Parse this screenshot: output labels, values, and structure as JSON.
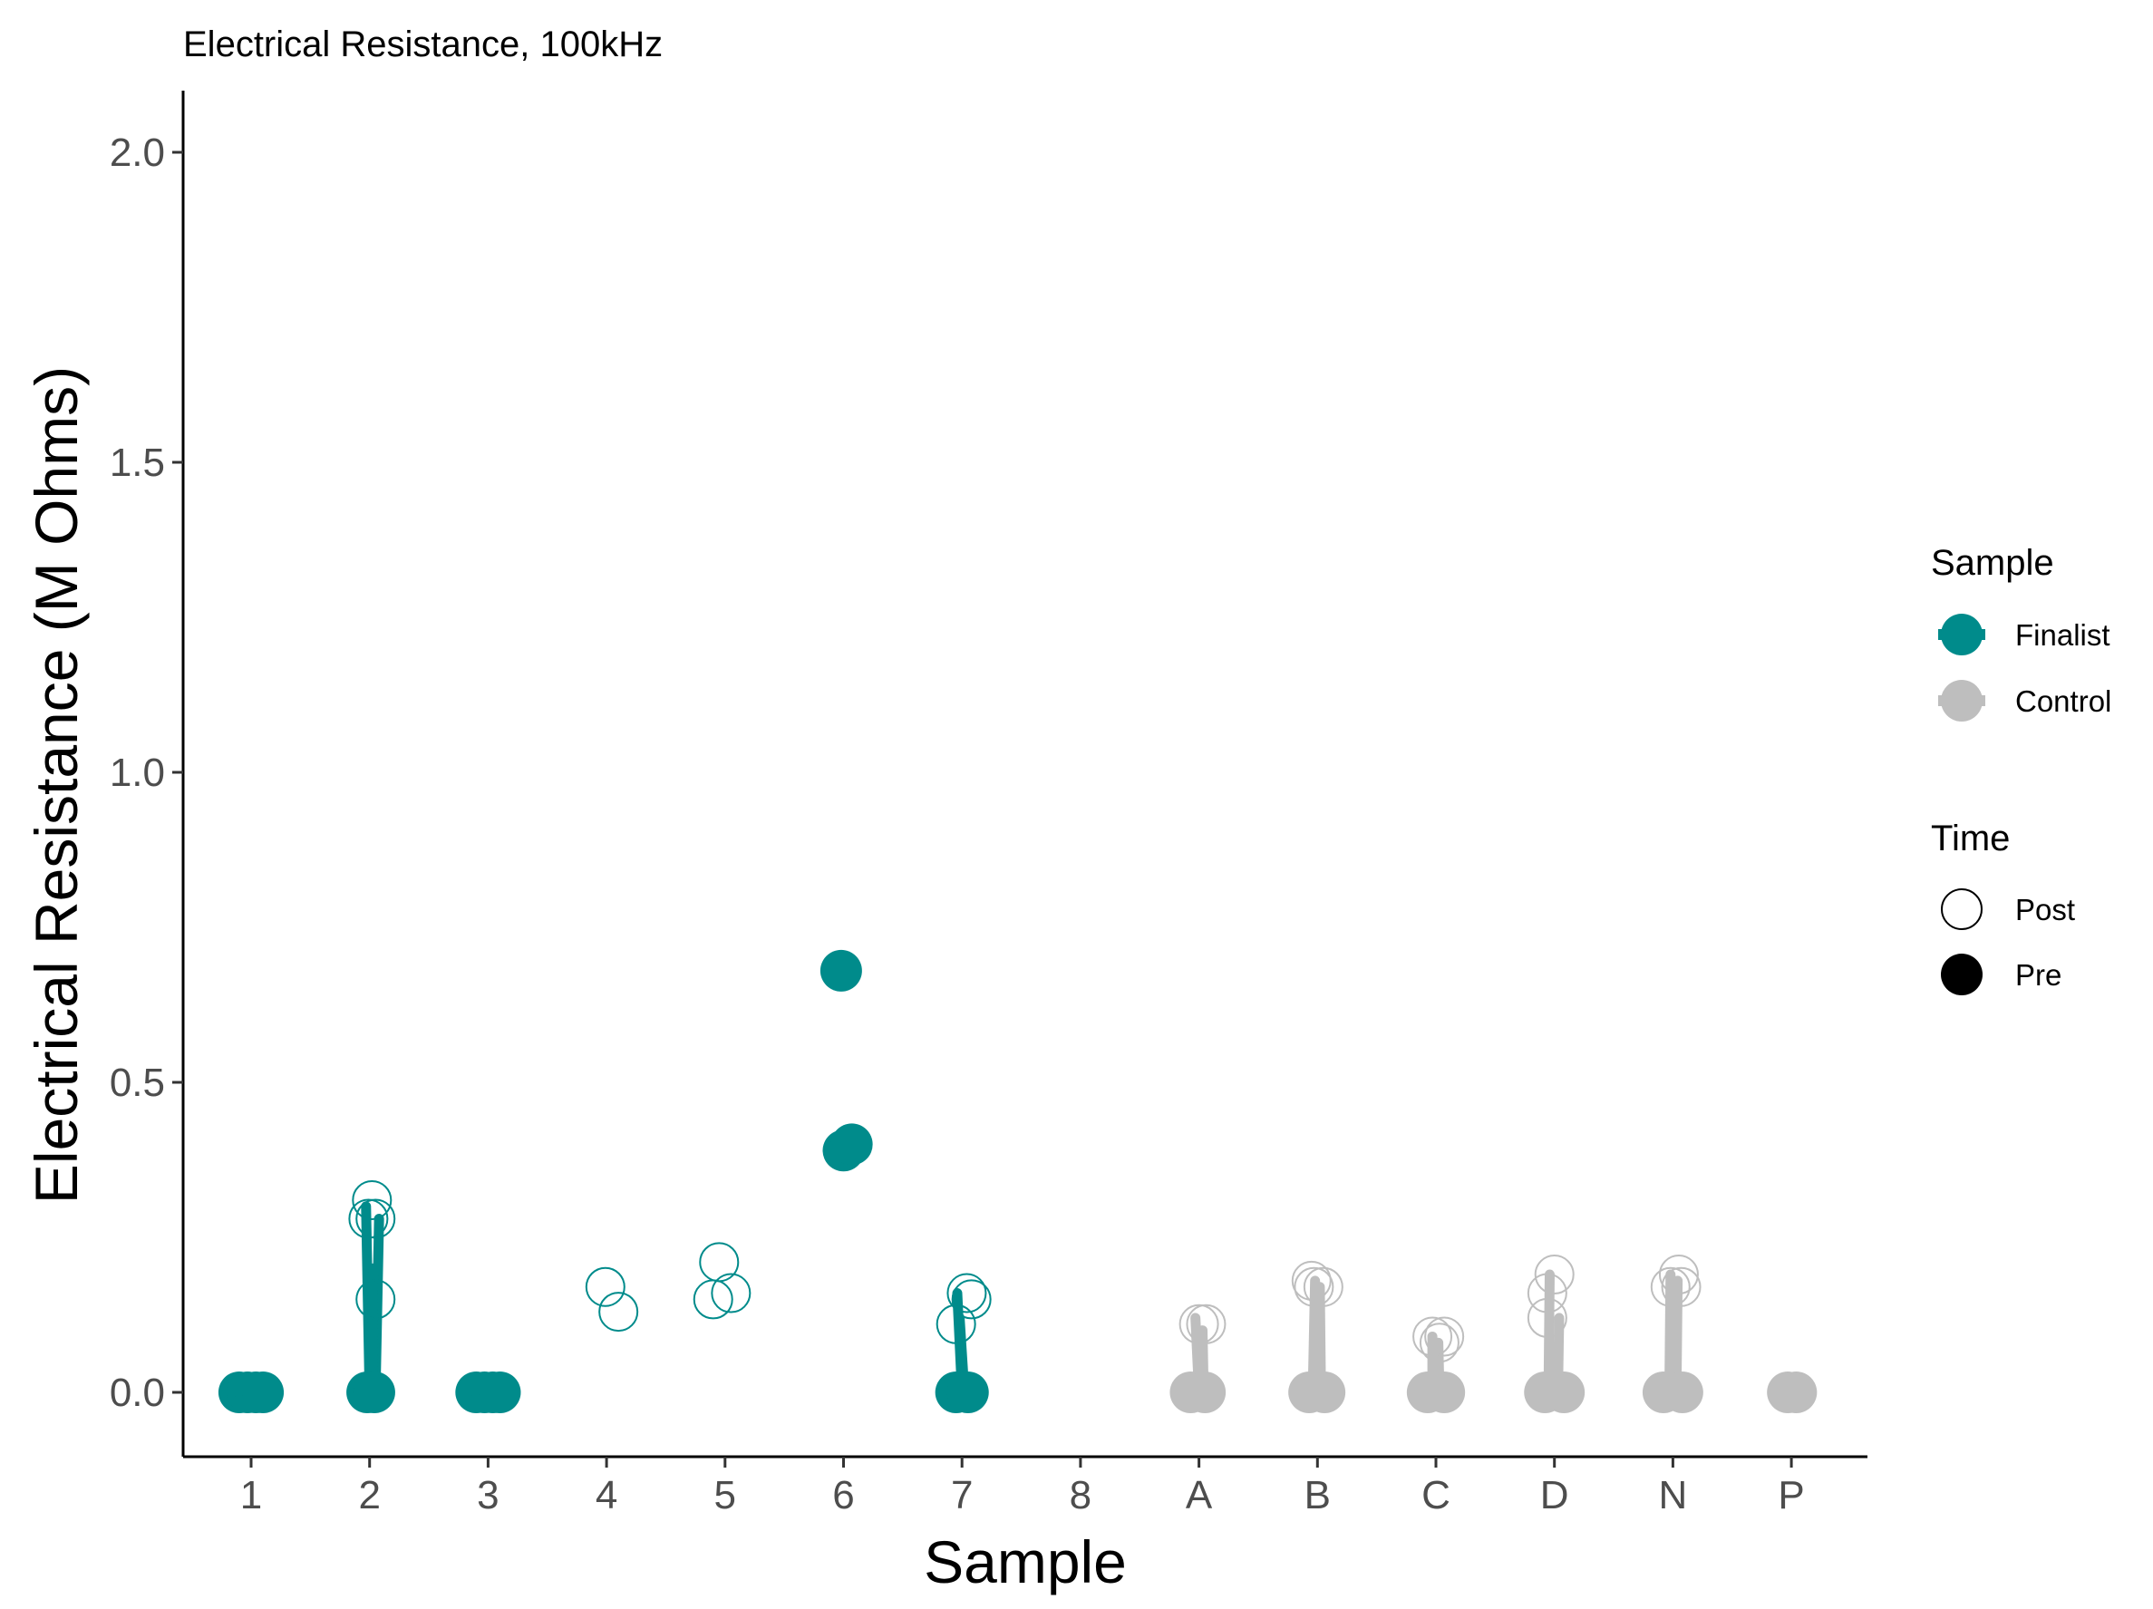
{
  "chart_data": {
    "type": "scatter",
    "title": "Electrical Resistance, 100kHz",
    "xlabel": "Sample",
    "ylabel": "Electrical Resistance (M Ohms)",
    "categories": [
      "1",
      "2",
      "3",
      "4",
      "5",
      "6",
      "7",
      "8",
      "A",
      "B",
      "C",
      "D",
      "N",
      "P"
    ],
    "ylim": [
      -0.1,
      2.1
    ],
    "yticks": [
      0.0,
      0.5,
      1.0,
      1.5,
      2.0
    ],
    "ytick_labels": [
      "0.0",
      "0.5",
      "1.0",
      "1.5",
      "2.0"
    ],
    "grid": false,
    "legend_position": "right",
    "colors": {
      "Finalist": "#008b8b",
      "Control": "#bebebe",
      "legend_time": "#000000"
    },
    "legend": {
      "sample_title": "Sample",
      "sample_entries": [
        {
          "label": "Finalist",
          "color": "#008b8b"
        },
        {
          "label": "Control",
          "color": "#bebebe"
        }
      ],
      "time_title": "Time",
      "time_entries": [
        {
          "label": "Post",
          "fill": "hollow"
        },
        {
          "label": "Pre",
          "fill": "filled"
        }
      ]
    },
    "points": [
      {
        "sample": "1",
        "group": "Finalist",
        "time": "Pre",
        "dx": -0.1,
        "y": 0.0
      },
      {
        "sample": "1",
        "group": "Finalist",
        "time": "Pre",
        "dx": -0.03,
        "y": 0.0
      },
      {
        "sample": "1",
        "group": "Finalist",
        "time": "Pre",
        "dx": 0.04,
        "y": 0.0
      },
      {
        "sample": "1",
        "group": "Finalist",
        "time": "Pre",
        "dx": 0.1,
        "y": 0.0
      },
      {
        "sample": "2",
        "group": "Finalist",
        "time": "Post",
        "dx": 0.02,
        "y": 0.31
      },
      {
        "sample": "2",
        "group": "Finalist",
        "time": "Post",
        "dx": -0.01,
        "y": 0.28
      },
      {
        "sample": "2",
        "group": "Finalist",
        "time": "Post",
        "dx": 0.05,
        "y": 0.28
      },
      {
        "sample": "2",
        "group": "Finalist",
        "time": "Post",
        "dx": 0.05,
        "y": 0.15
      },
      {
        "sample": "2",
        "group": "Finalist",
        "time": "Pre",
        "dx": -0.02,
        "y": 0.0
      },
      {
        "sample": "2",
        "group": "Finalist",
        "time": "Pre",
        "dx": 0.04,
        "y": 0.0
      },
      {
        "sample": "3",
        "group": "Finalist",
        "time": "Pre",
        "dx": -0.1,
        "y": 0.0
      },
      {
        "sample": "3",
        "group": "Finalist",
        "time": "Pre",
        "dx": -0.03,
        "y": 0.0
      },
      {
        "sample": "3",
        "group": "Finalist",
        "time": "Pre",
        "dx": 0.04,
        "y": 0.0
      },
      {
        "sample": "3",
        "group": "Finalist",
        "time": "Pre",
        "dx": 0.1,
        "y": 0.0
      },
      {
        "sample": "4",
        "group": "Finalist",
        "time": "Post",
        "dx": -0.01,
        "y": 0.17
      },
      {
        "sample": "4",
        "group": "Finalist",
        "time": "Post",
        "dx": 0.1,
        "y": 0.13
      },
      {
        "sample": "5",
        "group": "Finalist",
        "time": "Post",
        "dx": -0.05,
        "y": 0.21
      },
      {
        "sample": "5",
        "group": "Finalist",
        "time": "Post",
        "dx": -0.1,
        "y": 0.15
      },
      {
        "sample": "5",
        "group": "Finalist",
        "time": "Post",
        "dx": 0.05,
        "y": 0.16
      },
      {
        "sample": "6",
        "group": "Finalist",
        "time": "Pre",
        "dx": -0.02,
        "y": 0.68
      },
      {
        "sample": "6",
        "group": "Finalist",
        "time": "Pre",
        "dx": -0.0,
        "y": 0.39
      },
      {
        "sample": "6",
        "group": "Finalist",
        "time": "Pre",
        "dx": 0.07,
        "y": 0.4
      },
      {
        "sample": "7",
        "group": "Finalist",
        "time": "Post",
        "dx": 0.04,
        "y": 0.16
      },
      {
        "sample": "7",
        "group": "Finalist",
        "time": "Post",
        "dx": 0.08,
        "y": 0.15
      },
      {
        "sample": "7",
        "group": "Finalist",
        "time": "Post",
        "dx": -0.05,
        "y": 0.11
      },
      {
        "sample": "7",
        "group": "Finalist",
        "time": "Pre",
        "dx": -0.05,
        "y": 0.0
      },
      {
        "sample": "7",
        "group": "Finalist",
        "time": "Pre",
        "dx": 0.05,
        "y": 0.0
      },
      {
        "sample": "A",
        "group": "Control",
        "time": "Post",
        "dx": -0.0,
        "y": 0.11
      },
      {
        "sample": "A",
        "group": "Control",
        "time": "Post",
        "dx": 0.06,
        "y": 0.11
      },
      {
        "sample": "A",
        "group": "Control",
        "time": "Pre",
        "dx": -0.07,
        "y": 0.0
      },
      {
        "sample": "A",
        "group": "Control",
        "time": "Pre",
        "dx": 0.05,
        "y": 0.0
      },
      {
        "sample": "B",
        "group": "Control",
        "time": "Post",
        "dx": -0.05,
        "y": 0.18
      },
      {
        "sample": "B",
        "group": "Control",
        "time": "Post",
        "dx": -0.03,
        "y": 0.17
      },
      {
        "sample": "B",
        "group": "Control",
        "time": "Post",
        "dx": 0.05,
        "y": 0.17
      },
      {
        "sample": "B",
        "group": "Control",
        "time": "Pre",
        "dx": -0.07,
        "y": 0.0
      },
      {
        "sample": "B",
        "group": "Control",
        "time": "Pre",
        "dx": 0.06,
        "y": 0.0
      },
      {
        "sample": "C",
        "group": "Control",
        "time": "Post",
        "dx": -0.03,
        "y": 0.09
      },
      {
        "sample": "C",
        "group": "Control",
        "time": "Post",
        "dx": 0.07,
        "y": 0.09
      },
      {
        "sample": "C",
        "group": "Control",
        "time": "Post",
        "dx": 0.03,
        "y": 0.08
      },
      {
        "sample": "C",
        "group": "Control",
        "time": "Pre",
        "dx": -0.07,
        "y": 0.0
      },
      {
        "sample": "C",
        "group": "Control",
        "time": "Pre",
        "dx": 0.07,
        "y": 0.0
      },
      {
        "sample": "D",
        "group": "Control",
        "time": "Post",
        "dx": 0.0,
        "y": 0.19
      },
      {
        "sample": "D",
        "group": "Control",
        "time": "Post",
        "dx": -0.06,
        "y": 0.16
      },
      {
        "sample": "D",
        "group": "Control",
        "time": "Post",
        "dx": -0.06,
        "y": 0.12
      },
      {
        "sample": "D",
        "group": "Control",
        "time": "Pre",
        "dx": -0.08,
        "y": 0.0
      },
      {
        "sample": "D",
        "group": "Control",
        "time": "Pre",
        "dx": 0.08,
        "y": 0.0
      },
      {
        "sample": "N",
        "group": "Control",
        "time": "Post",
        "dx": 0.05,
        "y": 0.19
      },
      {
        "sample": "N",
        "group": "Control",
        "time": "Post",
        "dx": -0.02,
        "y": 0.17
      },
      {
        "sample": "N",
        "group": "Control",
        "time": "Post",
        "dx": 0.07,
        "y": 0.17
      },
      {
        "sample": "N",
        "group": "Control",
        "time": "Pre",
        "dx": -0.08,
        "y": 0.0
      },
      {
        "sample": "N",
        "group": "Control",
        "time": "Pre",
        "dx": 0.08,
        "y": 0.0
      },
      {
        "sample": "P",
        "group": "Control",
        "time": "Pre",
        "dx": -0.03,
        "y": 0.0
      },
      {
        "sample": "P",
        "group": "Control",
        "time": "Pre",
        "dx": 0.04,
        "y": 0.0
      }
    ],
    "segments": [
      {
        "sample": "2",
        "group": "Finalist",
        "x1": -0.03,
        "y1": 0.3,
        "x2": 0.0,
        "y2": 0.0
      },
      {
        "sample": "2",
        "group": "Finalist",
        "x1": 0.08,
        "y1": 0.28,
        "x2": 0.05,
        "y2": 0.0
      },
      {
        "sample": "2",
        "group": "Finalist",
        "x1": 0.03,
        "y1": 0.2,
        "x2": 0.02,
        "y2": 0.0
      },
      {
        "sample": "7",
        "group": "Finalist",
        "x1": -0.04,
        "y1": 0.16,
        "x2": 0.0,
        "y2": 0.0
      },
      {
        "sample": "7",
        "group": "Finalist",
        "x1": -0.02,
        "y1": 0.12,
        "x2": 0.02,
        "y2": 0.0
      },
      {
        "sample": "A",
        "group": "Control",
        "x1": -0.03,
        "y1": 0.12,
        "x2": 0.0,
        "y2": 0.0
      },
      {
        "sample": "A",
        "group": "Control",
        "x1": 0.03,
        "y1": 0.1,
        "x2": 0.04,
        "y2": 0.0
      },
      {
        "sample": "B",
        "group": "Control",
        "x1": -0.02,
        "y1": 0.18,
        "x2": -0.04,
        "y2": 0.0
      },
      {
        "sample": "B",
        "group": "Control",
        "x1": 0.02,
        "y1": 0.17,
        "x2": 0.03,
        "y2": 0.0
      },
      {
        "sample": "C",
        "group": "Control",
        "x1": -0.03,
        "y1": 0.09,
        "x2": -0.03,
        "y2": 0.0
      },
      {
        "sample": "C",
        "group": "Control",
        "x1": 0.02,
        "y1": 0.08,
        "x2": 0.03,
        "y2": 0.0
      },
      {
        "sample": "D",
        "group": "Control",
        "x1": -0.04,
        "y1": 0.19,
        "x2": -0.05,
        "y2": 0.0
      },
      {
        "sample": "D",
        "group": "Control",
        "x1": 0.04,
        "y1": 0.12,
        "x2": 0.03,
        "y2": 0.0
      },
      {
        "sample": "N",
        "group": "Control",
        "x1": -0.02,
        "y1": 0.19,
        "x2": -0.03,
        "y2": 0.0
      },
      {
        "sample": "N",
        "group": "Control",
        "x1": 0.04,
        "y1": 0.18,
        "x2": 0.03,
        "y2": 0.0
      }
    ]
  }
}
